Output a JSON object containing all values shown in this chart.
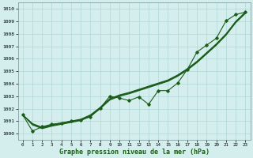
{
  "title": "Graphe pression niveau de la mer (hPa)",
  "x_labels": [
    "0",
    "1",
    "2",
    "3",
    "4",
    "5",
    "6",
    "7",
    "8",
    "9",
    "10",
    "11",
    "12",
    "13",
    "14",
    "15",
    "16",
    "17",
    "18",
    "19",
    "20",
    "21",
    "22",
    "23"
  ],
  "ylim": [
    999.5,
    1010.5
  ],
  "yticks": [
    1000,
    1001,
    1002,
    1003,
    1004,
    1005,
    1006,
    1007,
    1008,
    1009,
    1010
  ],
  "background_color": "#d4eeee",
  "grid_color": "#b0d8d8",
  "line_color": "#1a5c1a",
  "xlim": [
    -0.5,
    23.5
  ],
  "smooth1": [
    1001.5,
    1000.8,
    1000.5,
    1000.7,
    1000.85,
    1001.0,
    1001.15,
    1001.5,
    1002.1,
    1002.8,
    1003.1,
    1003.3,
    1003.55,
    1003.8,
    1004.05,
    1004.3,
    1004.7,
    1005.2,
    1005.8,
    1006.5,
    1007.2,
    1008.0,
    1009.0,
    1009.75
  ],
  "smooth2": [
    1001.5,
    1000.75,
    1000.45,
    1000.65,
    1000.8,
    1000.95,
    1001.1,
    1001.45,
    1002.05,
    1002.75,
    1003.05,
    1003.25,
    1003.5,
    1003.75,
    1004.0,
    1004.25,
    1004.65,
    1005.15,
    1005.75,
    1006.45,
    1007.15,
    1007.95,
    1008.95,
    1009.7
  ],
  "smooth3": [
    1001.5,
    1000.7,
    1000.4,
    1000.6,
    1000.75,
    1000.9,
    1001.05,
    1001.4,
    1002.0,
    1002.7,
    1003.0,
    1003.2,
    1003.45,
    1003.7,
    1003.95,
    1004.2,
    1004.6,
    1005.1,
    1005.7,
    1006.4,
    1007.1,
    1007.9,
    1008.9,
    1009.65
  ],
  "zigzag": [
    1001.5,
    1000.2,
    1000.55,
    1000.75,
    1000.85,
    1001.0,
    1001.1,
    1001.35,
    1002.05,
    1003.0,
    1002.85,
    1002.65,
    1002.95,
    1002.35,
    1003.45,
    1003.45,
    1004.05,
    1005.15,
    1006.55,
    1007.1,
    1007.65,
    1009.05,
    1009.55,
    1009.75
  ]
}
